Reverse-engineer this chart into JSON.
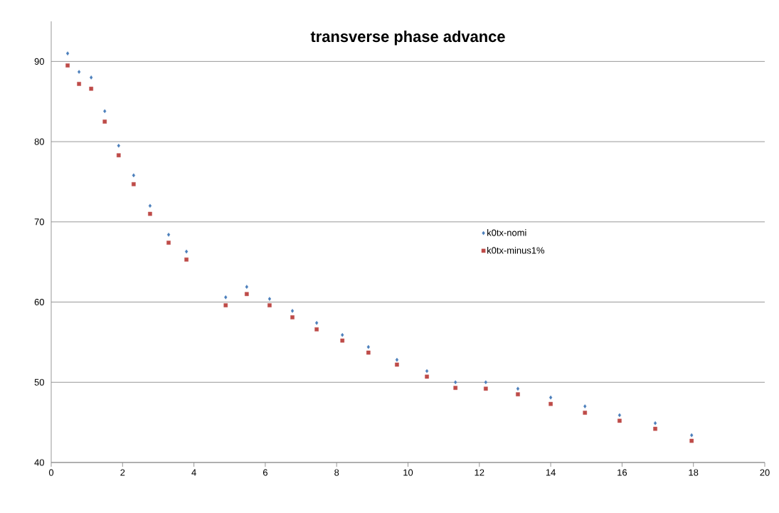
{
  "chart_data": {
    "type": "scatter",
    "title": "transverse phase advance",
    "x": [
      0.46,
      0.78,
      1.12,
      1.5,
      1.89,
      2.31,
      2.77,
      3.29,
      3.79,
      4.89,
      5.48,
      6.12,
      6.76,
      7.44,
      8.16,
      8.89,
      9.69,
      10.53,
      11.33,
      12.18,
      13.08,
      14.0,
      14.96,
      15.93,
      16.93,
      17.95
    ],
    "series": [
      {
        "name": "k0tx-nomi",
        "color": "#4a7ebb",
        "marker": "diamond",
        "values": [
          91.0,
          88.7,
          88.0,
          83.8,
          79.5,
          75.8,
          72.0,
          68.4,
          66.3,
          60.6,
          61.9,
          60.4,
          58.9,
          57.4,
          55.9,
          54.4,
          52.8,
          51.4,
          50.0,
          50.0,
          49.2,
          48.1,
          47.0,
          45.9,
          44.9,
          43.4
        ]
      },
      {
        "name": "k0tx-minus1%",
        "color": "#be4b48",
        "marker": "square",
        "values": [
          89.5,
          87.2,
          86.6,
          82.5,
          78.3,
          74.7,
          71.0,
          67.4,
          65.3,
          59.6,
          61.0,
          59.6,
          58.1,
          56.6,
          55.2,
          53.7,
          52.2,
          50.7,
          49.3,
          49.2,
          48.5,
          47.3,
          46.2,
          45.2,
          44.2,
          42.7
        ]
      }
    ],
    "xlim": [
      0,
      20
    ],
    "xticks": [
      0,
      2,
      4,
      6,
      8,
      10,
      12,
      14,
      16,
      18,
      20
    ],
    "ylim": [
      40,
      95
    ],
    "yticks": [
      40,
      50,
      60,
      70,
      80,
      90
    ],
    "grid": "y",
    "legend": "right"
  }
}
